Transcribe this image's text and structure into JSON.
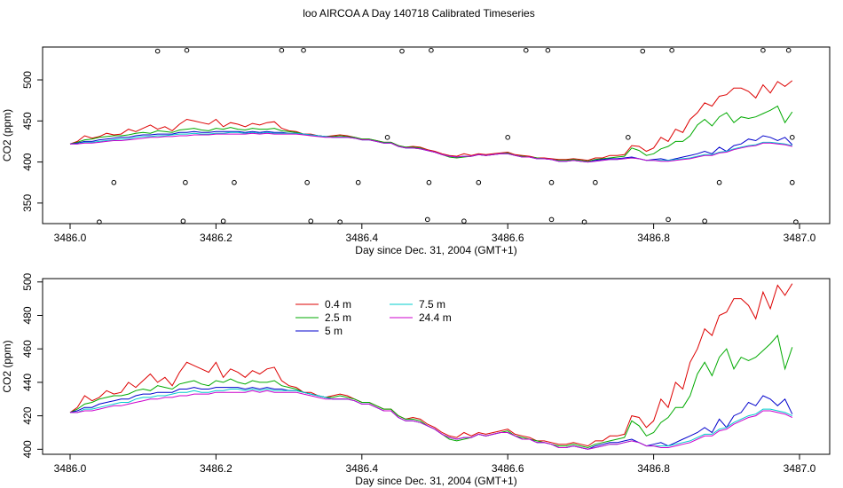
{
  "title": "loo AIRCOA A  Day 140718  Calibrated Timeseries",
  "chart_data": [
    {
      "type": "line",
      "xlabel": "Day since Dec. 31, 2004 (GMT+1)",
      "ylabel": "CO2 (ppm)",
      "xlim": [
        3486.0,
        3487.0
      ],
      "ylim": [
        325,
        540
      ],
      "x_ticks": [
        3486.0,
        3486.2,
        3486.4,
        3486.6,
        3486.8,
        3487.0
      ],
      "x_tick_labels": [
        "3486.0",
        "3486.2",
        "3486.4",
        "3486.6",
        "3486.8",
        "3487.0"
      ],
      "y_ticks": [
        350,
        400,
        450,
        500
      ],
      "y_tick_labels": [
        "350",
        "400",
        "450",
        "500"
      ],
      "markers": [
        {
          "x": 3486.04,
          "y": 327
        },
        {
          "x": 3486.06,
          "y": 375
        },
        {
          "x": 3486.12,
          "y": 535
        },
        {
          "x": 3486.155,
          "y": 328
        },
        {
          "x": 3486.158,
          "y": 375
        },
        {
          "x": 3486.16,
          "y": 536
        },
        {
          "x": 3486.21,
          "y": 328
        },
        {
          "x": 3486.225,
          "y": 375
        },
        {
          "x": 3486.29,
          "y": 536
        },
        {
          "x": 3486.32,
          "y": 536
        },
        {
          "x": 3486.325,
          "y": 375
        },
        {
          "x": 3486.33,
          "y": 328
        },
        {
          "x": 3486.37,
          "y": 327
        },
        {
          "x": 3486.395,
          "y": 375
        },
        {
          "x": 3486.435,
          "y": 430
        },
        {
          "x": 3486.455,
          "y": 535
        },
        {
          "x": 3486.49,
          "y": 330
        },
        {
          "x": 3486.492,
          "y": 375
        },
        {
          "x": 3486.495,
          "y": 536
        },
        {
          "x": 3486.54,
          "y": 328
        },
        {
          "x": 3486.56,
          "y": 375
        },
        {
          "x": 3486.6,
          "y": 430
        },
        {
          "x": 3486.625,
          "y": 536
        },
        {
          "x": 3486.655,
          "y": 536
        },
        {
          "x": 3486.66,
          "y": 375
        },
        {
          "x": 3486.66,
          "y": 330
        },
        {
          "x": 3486.705,
          "y": 327
        },
        {
          "x": 3486.72,
          "y": 375
        },
        {
          "x": 3486.765,
          "y": 430
        },
        {
          "x": 3486.785,
          "y": 535
        },
        {
          "x": 3486.82,
          "y": 330
        },
        {
          "x": 3486.825,
          "y": 536
        },
        {
          "x": 3486.87,
          "y": 328
        },
        {
          "x": 3486.89,
          "y": 375
        },
        {
          "x": 3486.95,
          "y": 536
        },
        {
          "x": 3486.985,
          "y": 536
        },
        {
          "x": 3486.99,
          "y": 430
        },
        {
          "x": 3486.99,
          "y": 375
        },
        {
          "x": 3486.995,
          "y": 327
        }
      ]
    },
    {
      "type": "line",
      "xlabel": "Day since Dec. 31, 2004 (GMT+1)",
      "ylabel": "CO2 (ppm)",
      "xlim": [
        3486.0,
        3487.0
      ],
      "ylim": [
        397,
        502
      ],
      "x_ticks": [
        3486.0,
        3486.2,
        3486.4,
        3486.6,
        3486.8,
        3487.0
      ],
      "x_tick_labels": [
        "3486.0",
        "3486.2",
        "3486.4",
        "3486.6",
        "3486.8",
        "3487.0"
      ],
      "y_ticks": [
        400,
        420,
        440,
        460,
        480,
        500
      ],
      "y_tick_labels": [
        "400",
        "420",
        "440",
        "460",
        "480",
        "500"
      ],
      "legend_position": "top-left",
      "legend_layout": [
        [
          "0.4 m",
          "7.5 m"
        ],
        [
          "2.5 m",
          "24.4 m"
        ],
        [
          "5 m"
        ]
      ]
    }
  ],
  "series_x": [
    3486.0,
    3486.01,
    3486.02,
    3486.03,
    3486.04,
    3486.05,
    3486.06,
    3486.07,
    3486.08,
    3486.09,
    3486.1,
    3486.11,
    3486.12,
    3486.13,
    3486.14,
    3486.15,
    3486.16,
    3486.17,
    3486.18,
    3486.19,
    3486.2,
    3486.21,
    3486.22,
    3486.23,
    3486.24,
    3486.25,
    3486.26,
    3486.27,
    3486.28,
    3486.29,
    3486.3,
    3486.31,
    3486.32,
    3486.33,
    3486.34,
    3486.35,
    3486.36,
    3486.37,
    3486.38,
    3486.39,
    3486.4,
    3486.41,
    3486.42,
    3486.43,
    3486.44,
    3486.45,
    3486.46,
    3486.47,
    3486.48,
    3486.49,
    3486.5,
    3486.51,
    3486.52,
    3486.53,
    3486.54,
    3486.55,
    3486.56,
    3486.57,
    3486.58,
    3486.59,
    3486.6,
    3486.61,
    3486.62,
    3486.63,
    3486.64,
    3486.65,
    3486.66,
    3486.67,
    3486.68,
    3486.69,
    3486.7,
    3486.71,
    3486.72,
    3486.73,
    3486.74,
    3486.75,
    3486.76,
    3486.77,
    3486.78,
    3486.79,
    3486.8,
    3486.81,
    3486.82,
    3486.83,
    3486.84,
    3486.85,
    3486.86,
    3486.87,
    3486.88,
    3486.89,
    3486.9,
    3486.91,
    3486.92,
    3486.93,
    3486.94,
    3486.95,
    3486.96,
    3486.97,
    3486.98,
    3486.99
  ],
  "series": [
    {
      "name": "0.4 m",
      "color": "#dd0000",
      "values": [
        422,
        425,
        432,
        429,
        431,
        435,
        433,
        434,
        440,
        437,
        441,
        445,
        440,
        443,
        438,
        446,
        452,
        450,
        448,
        446,
        452,
        443,
        448,
        446,
        443,
        447,
        445,
        448,
        449,
        441,
        438,
        437,
        434,
        434,
        432,
        431,
        432,
        433,
        432,
        430,
        428,
        428,
        426,
        424,
        424,
        420,
        418,
        419,
        418,
        415,
        413,
        410,
        408,
        407,
        410,
        408,
        410,
        409,
        410,
        411,
        412,
        409,
        408,
        407,
        405,
        405,
        404,
        403,
        403,
        404,
        403,
        402,
        405,
        405,
        408,
        408,
        409,
        420,
        419,
        413,
        417,
        430,
        425,
        440,
        436,
        452,
        460,
        472,
        468,
        480,
        482,
        490,
        490,
        486,
        478,
        494,
        484,
        498,
        492,
        499
      ]
    },
    {
      "name": "2.5 m",
      "color": "#00aa00",
      "values": [
        422,
        424,
        427,
        428,
        430,
        431,
        432,
        432,
        433,
        435,
        436,
        435,
        438,
        437,
        436,
        439,
        440,
        441,
        439,
        438,
        441,
        440,
        442,
        440,
        439,
        441,
        440,
        440,
        441,
        438,
        437,
        436,
        434,
        433,
        432,
        431,
        431,
        432,
        431,
        430,
        428,
        428,
        426,
        424,
        424,
        420,
        418,
        418,
        417,
        414,
        412,
        409,
        406,
        405,
        406,
        407,
        409,
        408,
        409,
        410,
        411,
        408,
        407,
        406,
        405,
        404,
        403,
        402,
        402,
        403,
        402,
        401,
        403,
        404,
        405,
        406,
        407,
        417,
        414,
        408,
        410,
        416,
        419,
        425,
        425,
        432,
        445,
        452,
        444,
        455,
        460,
        448,
        455,
        453,
        455,
        459,
        463,
        468,
        448,
        461
      ]
    },
    {
      "name": "5 m",
      "color": "#0000cc",
      "values": [
        422,
        423,
        425,
        425,
        427,
        428,
        429,
        430,
        430,
        432,
        433,
        433,
        434,
        434,
        434,
        436,
        436,
        437,
        436,
        436,
        437,
        437,
        437,
        437,
        436,
        437,
        436,
        437,
        436,
        436,
        435,
        435,
        434,
        433,
        432,
        431,
        430,
        430,
        430,
        429,
        427,
        427,
        425,
        423,
        423,
        419,
        417,
        417,
        416,
        414,
        412,
        409,
        407,
        406,
        407,
        407,
        409,
        408,
        409,
        410,
        410,
        408,
        406,
        406,
        404,
        404,
        403,
        401,
        401,
        402,
        401,
        400,
        402,
        403,
        404,
        404,
        405,
        406,
        404,
        402,
        403,
        404,
        402,
        404,
        406,
        408,
        410,
        413,
        410,
        418,
        413,
        420,
        422,
        428,
        426,
        432,
        430,
        426,
        430,
        421
      ]
    },
    {
      "name": "7.5 m",
      "color": "#00cccc",
      "values": [
        422,
        422,
        424,
        424,
        425,
        426,
        427,
        428,
        428,
        430,
        431,
        431,
        432,
        432,
        433,
        434,
        434,
        435,
        434,
        434,
        435,
        435,
        436,
        436,
        435,
        436,
        435,
        436,
        435,
        435,
        435,
        435,
        434,
        433,
        432,
        431,
        430,
        430,
        430,
        429,
        427,
        427,
        425,
        423,
        423,
        419,
        417,
        417,
        416,
        414,
        412,
        409,
        407,
        406,
        407,
        407,
        409,
        408,
        409,
        410,
        410,
        408,
        406,
        406,
        404,
        404,
        403,
        401,
        401,
        402,
        401,
        400,
        401,
        402,
        403,
        403,
        404,
        405,
        404,
        402,
        402,
        402,
        402,
        403,
        404,
        405,
        407,
        409,
        409,
        412,
        413,
        416,
        418,
        420,
        421,
        424,
        424,
        423,
        422,
        420
      ]
    },
    {
      "name": "24.4 m",
      "color": "#cc00cc",
      "values": [
        422,
        422,
        423,
        423,
        424,
        425,
        426,
        426,
        427,
        428,
        429,
        430,
        430,
        431,
        431,
        432,
        432,
        433,
        433,
        433,
        434,
        434,
        434,
        434,
        434,
        435,
        434,
        435,
        434,
        434,
        434,
        434,
        433,
        432,
        431,
        430,
        430,
        430,
        430,
        429,
        427,
        427,
        425,
        423,
        423,
        419,
        417,
        417,
        416,
        414,
        412,
        409,
        407,
        406,
        407,
        407,
        409,
        408,
        409,
        410,
        410,
        408,
        406,
        406,
        404,
        404,
        403,
        401,
        401,
        402,
        401,
        400,
        401,
        402,
        403,
        403,
        404,
        405,
        404,
        402,
        402,
        401,
        401,
        402,
        403,
        404,
        406,
        408,
        408,
        411,
        412,
        415,
        417,
        419,
        420,
        423,
        423,
        422,
        421,
        419
      ]
    }
  ]
}
